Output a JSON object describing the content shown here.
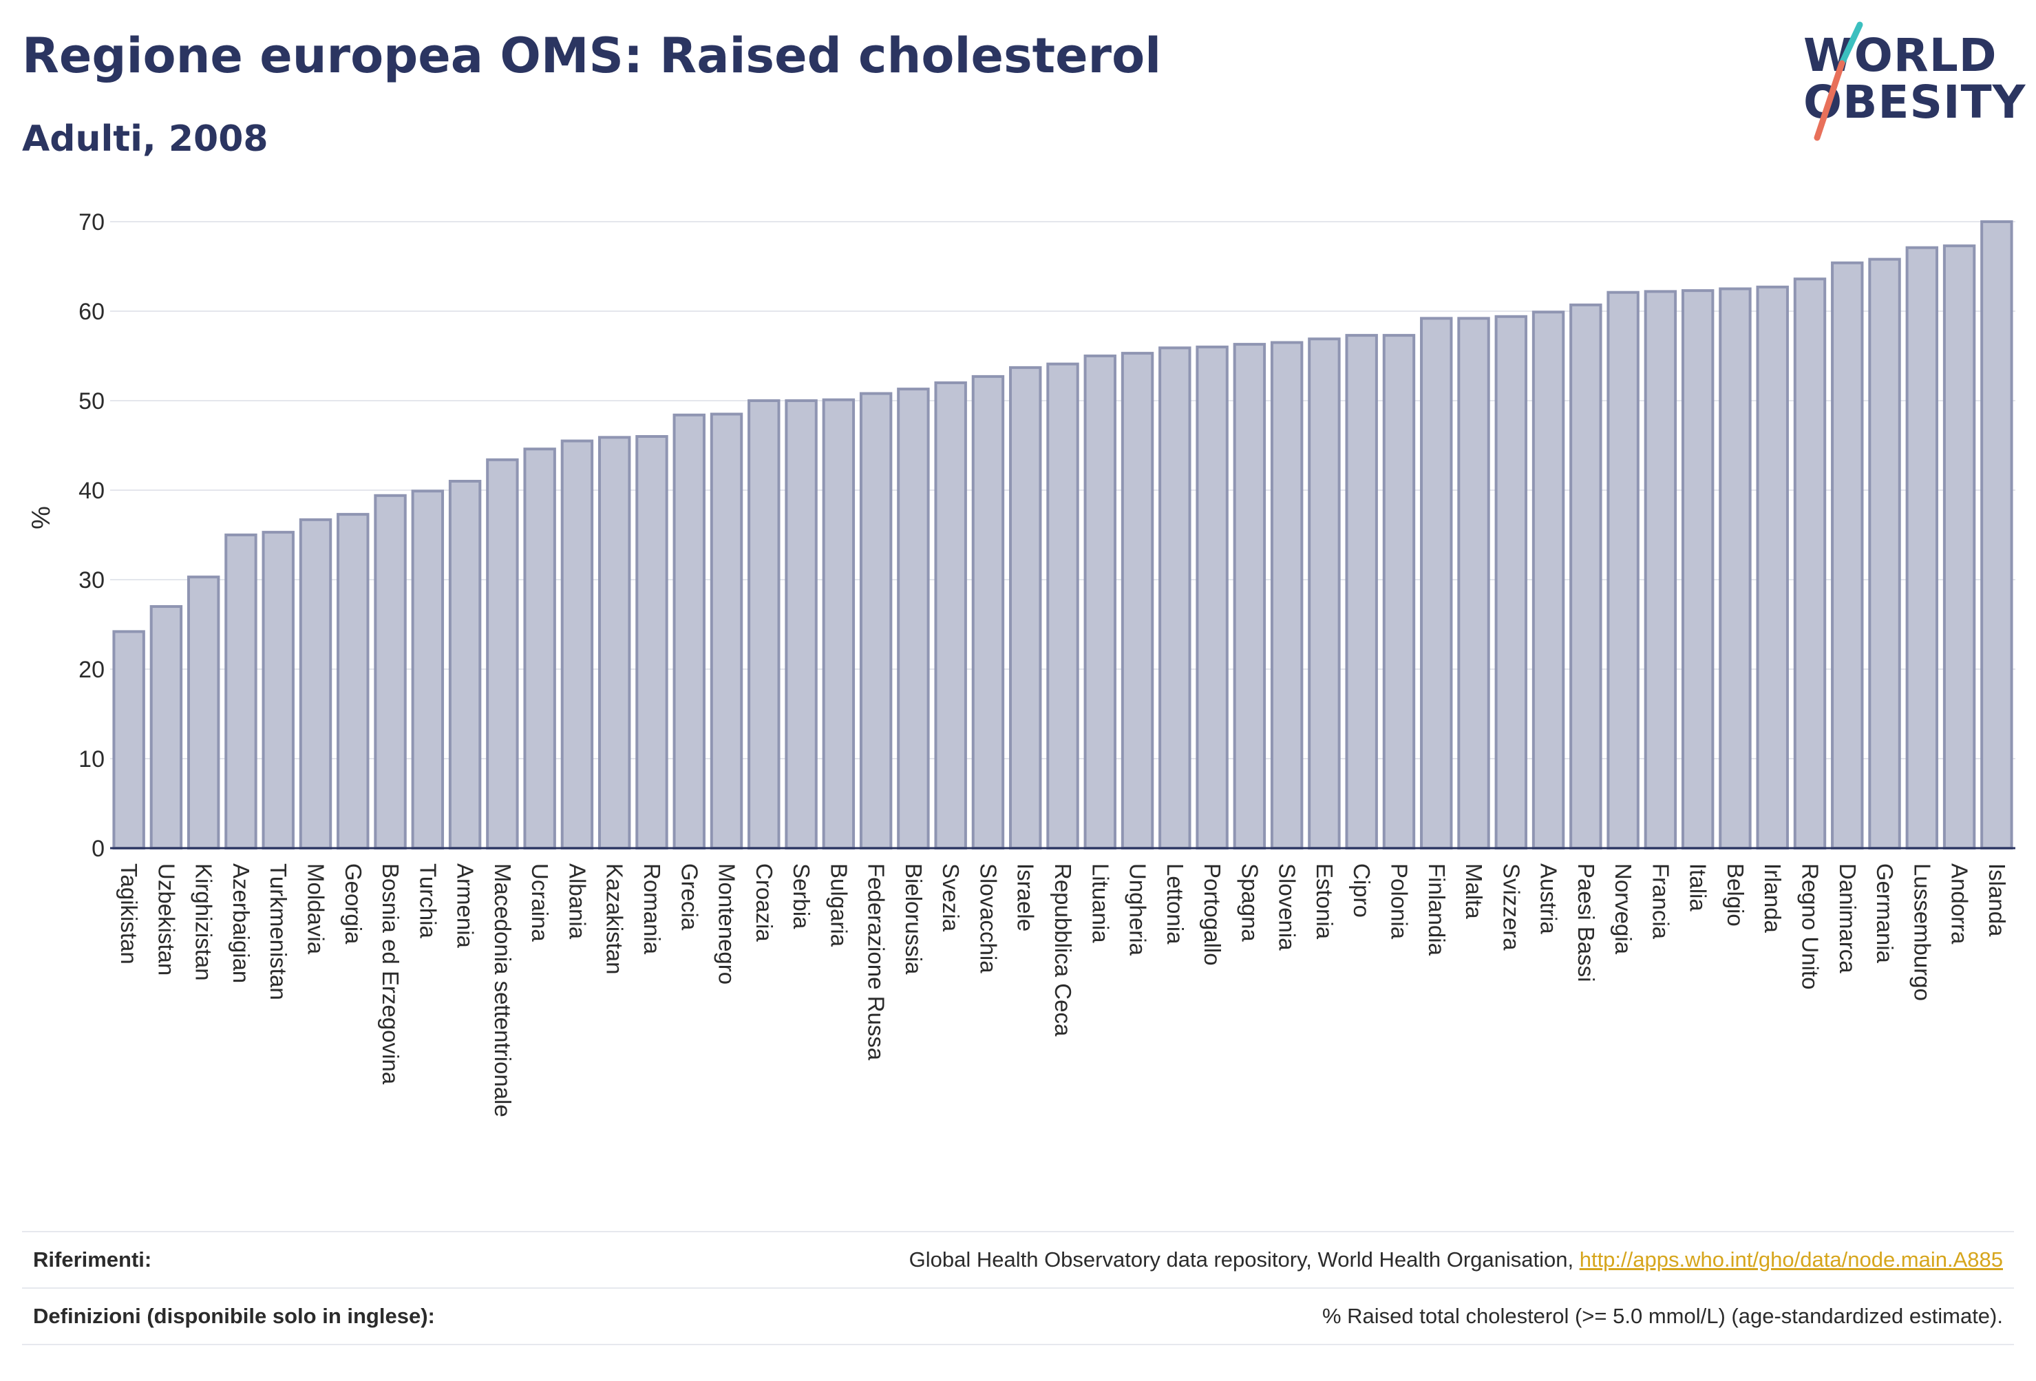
{
  "header": {
    "title": "Regione europea OMS: Raised cholesterol",
    "subtitle": "Adulti, 2008"
  },
  "logo": {
    "line1": "WORLD",
    "line2": "OBESITY",
    "colors": {
      "text": "#2b3561",
      "slash_teal": "#3bbfbf",
      "slash_coral": "#e8705a"
    }
  },
  "chart_data": {
    "type": "bar",
    "title": "Regione europea OMS: Raised cholesterol",
    "subtitle": "Adulti, 2008",
    "ylabel": "%",
    "xlabel": "",
    "ylim": [
      0,
      70
    ],
    "yticks": [
      0,
      10,
      20,
      30,
      40,
      50,
      60,
      70
    ],
    "grid": true,
    "bar_color": "#bfc3d4",
    "bar_edge_color": "#8f95b2",
    "categories": [
      "Tagikistan",
      "Uzbekistan",
      "Kirghizistan",
      "Azerbaigian",
      "Turkmenistan",
      "Moldavia",
      "Georgia",
      "Bosnia ed Erzegovina",
      "Turchia",
      "Armenia",
      "Macedonia settentrionale",
      "Ucraina",
      "Albania",
      "Kazakistan",
      "Romania",
      "Grecia",
      "Montenegro",
      "Croazia",
      "Serbia",
      "Bulgaria",
      "Federazione Russa",
      "Bielorussia",
      "Svezia",
      "Slovacchia",
      "Israele",
      "Repubblica Ceca",
      "Lituania",
      "Ungheria",
      "Lettonia",
      "Portogallo",
      "Spagna",
      "Slovenia",
      "Estonia",
      "Cipro",
      "Polonia",
      "Finlandia",
      "Malta",
      "Svizzera",
      "Austria",
      "Paesi Bassi",
      "Norvegia",
      "Francia",
      "Italia",
      "Belgio",
      "Irlanda",
      "Regno Unito",
      "Danimarca",
      "Germania",
      "Lussemburgo",
      "Andorra",
      "Islanda"
    ],
    "values": [
      24.2,
      27.0,
      30.3,
      35.0,
      35.3,
      36.7,
      37.3,
      39.4,
      39.9,
      41.0,
      43.4,
      44.6,
      45.5,
      45.9,
      46.0,
      48.4,
      48.5,
      50.0,
      50.0,
      50.1,
      50.8,
      51.3,
      52.0,
      52.7,
      53.7,
      54.1,
      55.0,
      55.3,
      55.9,
      56.0,
      56.3,
      56.5,
      56.9,
      57.3,
      57.3,
      59.2,
      59.2,
      59.4,
      59.9,
      60.7,
      62.1,
      62.2,
      62.3,
      62.5,
      62.7,
      63.6,
      65.4,
      65.8,
      67.1,
      67.3,
      70.0
    ]
  },
  "footer": {
    "references_label": "Riferimenti:",
    "references_text": "Global Health Observatory data repository, World Health Organisation, ",
    "references_link": "http://apps.who.int/gho/data/node.main.A885",
    "definitions_label": "Definizioni (disponibile solo in inglese):",
    "definitions_text": "% Raised total cholesterol (>= 5.0 mmol/L) (age-standardized estimate)."
  }
}
